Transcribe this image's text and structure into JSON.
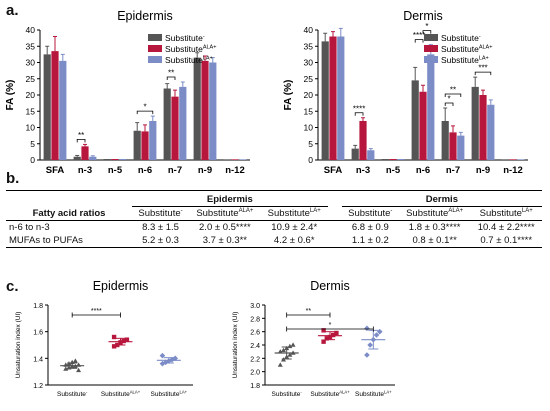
{
  "panels": {
    "a": "a.",
    "b": "b.",
    "c": "c."
  },
  "colors": {
    "minus": "#555555",
    "ala": "#b8173d",
    "la": "#7b8cc7"
  },
  "legend": {
    "base": "Substitute",
    "sup": [
      "-",
      "ALA+",
      "LA+"
    ]
  },
  "chart_data": [
    {
      "type": "bar",
      "title": "Epidermis",
      "ylabel": "FA (%)",
      "ylim": [
        0,
        40
      ],
      "yticks": [
        "0",
        "5",
        "10",
        "15",
        "20",
        "25",
        "30",
        "35",
        "40"
      ],
      "categories": [
        "SFA",
        "n-3",
        "n-5",
        "n-6",
        "n-7",
        "n-9",
        "n-12"
      ],
      "series": [
        {
          "name": "Substitute -",
          "values": [
            32.5,
            1.0,
            0.3,
            9.0,
            22.0,
            31.5,
            0.2
          ],
          "err": [
            2.5,
            0.4,
            0.1,
            2.5,
            1.5,
            1.5,
            0.1
          ]
        },
        {
          "name": "Substitute ALA+",
          "values": [
            33.5,
            4.2,
            0.3,
            8.8,
            19.5,
            30.5,
            0.2
          ],
          "err": [
            4.5,
            0.6,
            0.1,
            2.0,
            2.0,
            1.5,
            0.1
          ]
        },
        {
          "name": "Substitute LA+",
          "values": [
            30.5,
            1.0,
            0.3,
            12.0,
            22.5,
            30.0,
            0.2
          ],
          "err": [
            2.0,
            0.3,
            0.1,
            1.5,
            1.5,
            1.5,
            0.1
          ]
        }
      ],
      "sig": [
        {
          "cat": 1,
          "a": 0,
          "b": 1,
          "label": "**"
        },
        {
          "cat": 3,
          "a": 0,
          "b": 2,
          "label": "*"
        },
        {
          "cat": 4,
          "a": 0,
          "b": 1,
          "label": "**"
        }
      ]
    },
    {
      "type": "bar",
      "title": "Dermis",
      "ylabel": "FA (%)",
      "ylim": [
        0,
        40
      ],
      "yticks": [
        "0",
        "5",
        "10",
        "15",
        "20",
        "25",
        "30",
        "35",
        "40"
      ],
      "categories": [
        "SFA",
        "n-3",
        "n-5",
        "n-6",
        "n-7",
        "n-9",
        "n-12"
      ],
      "series": [
        {
          "name": "Substitute -",
          "values": [
            36.5,
            3.5,
            0.3,
            24.5,
            12.0,
            22.5,
            0.2
          ],
          "err": [
            2.5,
            1.0,
            0.1,
            4.0,
            4.0,
            3.0,
            0.1
          ]
        },
        {
          "name": "Substitute ALA+",
          "values": [
            38.0,
            12.0,
            0.3,
            21.0,
            8.5,
            20.0,
            0.2
          ],
          "err": [
            1.5,
            1.0,
            0.1,
            2.0,
            2.0,
            1.5,
            0.1
          ]
        },
        {
          "name": "Substitute LA+",
          "values": [
            38.0,
            3.0,
            0.3,
            32.5,
            7.5,
            17.0,
            0.2
          ],
          "err": [
            2.5,
            0.5,
            0.1,
            3.0,
            1.0,
            1.5,
            0.1
          ]
        }
      ],
      "sig": [
        {
          "cat": 1,
          "a": 0,
          "b": 1,
          "label": "****"
        },
        {
          "cat": 3,
          "a": 0,
          "b": 1,
          "label": "****"
        },
        {
          "cat": 3,
          "a": 1,
          "b": 2,
          "label": "*"
        },
        {
          "cat": 4,
          "a": 0,
          "b": 1,
          "label": "*"
        },
        {
          "cat": 4,
          "a": 0,
          "b": 2,
          "label": "**"
        },
        {
          "cat": 5,
          "a": 0,
          "b": 2,
          "label": "***"
        }
      ]
    },
    {
      "type": "scatter",
      "title": "Epidermis",
      "ylabel": "Unsaturation index (UI)",
      "ylim": [
        1.2,
        1.8
      ],
      "yticks": [
        "1.2",
        "1.4",
        "1.6",
        "1.8"
      ],
      "categories": [
        "Substitute",
        "Substitute",
        "Substitute"
      ],
      "category_sup": [
        "-",
        "ALA+",
        "LA+"
      ],
      "groups": [
        {
          "values": [
            1.32,
            1.33,
            1.34,
            1.34,
            1.35,
            1.35,
            1.36,
            1.37,
            1.38,
            1.31
          ],
          "mean": 1.345,
          "sd": 0.02
        },
        {
          "values": [
            1.49,
            1.5,
            1.52,
            1.53,
            1.54,
            1.56
          ],
          "mean": 1.525,
          "sd": 0.025
        },
        {
          "values": [
            1.36,
            1.37,
            1.38,
            1.39,
            1.4,
            1.42
          ],
          "mean": 1.385,
          "sd": 0.02
        }
      ],
      "sig": [
        {
          "a": 0,
          "b": 1,
          "label": "****"
        }
      ]
    },
    {
      "type": "scatter",
      "title": "Dermis",
      "ylabel": "Unsaturation index (UI)",
      "ylim": [
        1.8,
        3.0
      ],
      "yticks": [
        "1.8",
        "2.0",
        "2.2",
        "2.4",
        "2.6",
        "2.8",
        "3.0"
      ],
      "categories": [
        "Substitute",
        "Substitute",
        "Substitute"
      ],
      "category_sup": [
        "-",
        "ALA+",
        "LA+"
      ],
      "groups": [
        {
          "values": [
            2.1,
            2.18,
            2.22,
            2.25,
            2.28,
            2.3,
            2.32,
            2.35,
            2.38,
            2.4
          ],
          "mean": 2.28,
          "sd": 0.09
        },
        {
          "values": [
            2.45,
            2.5,
            2.52,
            2.55,
            2.58,
            2.62
          ],
          "mean": 2.54,
          "sd": 0.06
        },
        {
          "values": [
            2.25,
            2.4,
            2.48,
            2.55,
            2.6,
            2.65
          ],
          "mean": 2.48,
          "sd": 0.14
        }
      ],
      "sig": [
        {
          "a": 0,
          "b": 1,
          "label": "**"
        },
        {
          "a": 0,
          "b": 2,
          "label": "*"
        }
      ]
    }
  ],
  "table": {
    "row_header": "Fatty acid ratios",
    "group_epidermis": "Epidermis",
    "group_dermis": "Dermis",
    "col_base": "Substitute",
    "col_sups": [
      "-",
      "ALA+",
      "LA+"
    ],
    "rows": [
      {
        "label": "n-6 to n-3",
        "cells": [
          "8.3 ± 1.5",
          "2.0 ± 0.5****",
          "10.9 ± 2.4*",
          "6.8 ± 0.9",
          "1.8 ± 0.3****",
          "10.4 ± 2.2****"
        ]
      },
      {
        "label": "MUFAs to PUFAs",
        "cells": [
          "5.2 ± 0.3",
          "3.7 ± 0.3**",
          "4.2 ± 0.6*",
          "1.1 ± 0.2",
          "0.8 ± 0.1**",
          "0.7 ± 0.1****"
        ]
      }
    ]
  }
}
